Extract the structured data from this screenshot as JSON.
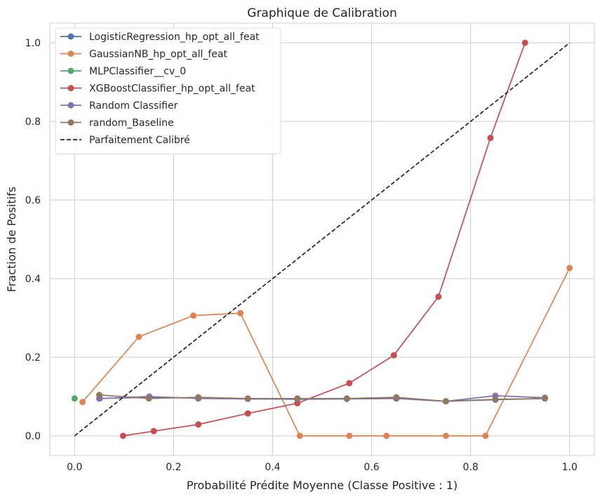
{
  "chart_data": {
    "type": "line",
    "title": "Graphique de Calibration",
    "xlabel": "Probabilité Prédite Moyenne (Classe Positive : 1)",
    "ylabel": "Fraction de Positifs",
    "xlim": [
      -0.05,
      1.05
    ],
    "ylim": [
      -0.05,
      1.05
    ],
    "xticks": [
      "0.0",
      "0.2",
      "0.4",
      "0.6",
      "0.8",
      "1.0"
    ],
    "yticks": [
      "0.0",
      "0.2",
      "0.4",
      "0.6",
      "0.8",
      "1.0"
    ],
    "grid": true,
    "legend_position": "top-left",
    "series": [
      {
        "name": "LogisticRegression_hp_opt_all_feat",
        "color": "#4c72b0",
        "style": "line-marker",
        "points": [
          [
            0.05,
            0.095
          ],
          [
            0.15,
            0.098
          ],
          [
            0.25,
            0.096
          ],
          [
            0.35,
            0.094
          ],
          [
            0.45,
            0.093
          ],
          [
            0.55,
            0.094
          ],
          [
            0.65,
            0.095
          ],
          [
            0.75,
            0.088
          ],
          [
            0.85,
            0.092
          ],
          [
            0.95,
            0.095
          ]
        ]
      },
      {
        "name": "GaussianNB_hp_opt_all_feat",
        "color": "#dd8452",
        "style": "line-marker",
        "points": [
          [
            0.016,
            0.086
          ],
          [
            0.13,
            0.252
          ],
          [
            0.24,
            0.306
          ],
          [
            0.335,
            0.312
          ],
          [
            0.455,
            0.0
          ],
          [
            0.555,
            0.0
          ],
          [
            0.63,
            0.0
          ],
          [
            0.75,
            0.0
          ],
          [
            0.83,
            0.0
          ],
          [
            1.0,
            0.427
          ]
        ]
      },
      {
        "name": "MLPClassifier__cv_0",
        "color": "#55a868",
        "style": "line-marker",
        "points": [
          [
            0.0,
            0.095
          ]
        ]
      },
      {
        "name": "XGBoostClassifier_hp_opt_all_feat",
        "color": "#c44e52",
        "style": "line-marker",
        "points": [
          [
            0.098,
            0.0
          ],
          [
            0.16,
            0.012
          ],
          [
            0.25,
            0.029
          ],
          [
            0.35,
            0.057
          ],
          [
            0.45,
            0.083
          ],
          [
            0.555,
            0.134
          ],
          [
            0.645,
            0.205
          ],
          [
            0.735,
            0.354
          ],
          [
            0.84,
            0.758
          ],
          [
            0.91,
            1.0
          ]
        ]
      },
      {
        "name": "Random Classifier",
        "color": "#8172b3",
        "style": "line-marker",
        "points": [
          [
            0.051,
            0.095
          ],
          [
            0.151,
            0.1
          ],
          [
            0.25,
            0.095
          ],
          [
            0.35,
            0.094
          ],
          [
            0.45,
            0.094
          ],
          [
            0.55,
            0.095
          ],
          [
            0.65,
            0.095
          ],
          [
            0.75,
            0.088
          ],
          [
            0.85,
            0.102
          ],
          [
            0.95,
            0.097
          ]
        ]
      },
      {
        "name": "random_Baseline",
        "color": "#937860",
        "style": "line-marker",
        "points": [
          [
            0.05,
            0.104
          ],
          [
            0.15,
            0.095
          ],
          [
            0.25,
            0.098
          ],
          [
            0.35,
            0.095
          ],
          [
            0.45,
            0.095
          ],
          [
            0.55,
            0.095
          ],
          [
            0.65,
            0.098
          ],
          [
            0.75,
            0.088
          ],
          [
            0.85,
            0.093
          ],
          [
            0.95,
            0.095
          ]
        ]
      },
      {
        "name": "Parfaitement Calibré",
        "color": "#222222",
        "style": "dashed",
        "points": [
          [
            0.0,
            0.0
          ],
          [
            1.0,
            1.0
          ]
        ]
      }
    ]
  }
}
